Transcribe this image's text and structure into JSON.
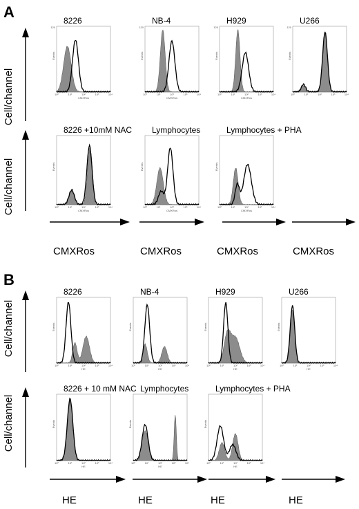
{
  "panels": [
    {
      "letter": "A",
      "y_axis_label": "Cell/channel",
      "x_unit": "CMXRos",
      "rows": [
        [
          {
            "title": "8226",
            "ylab": "Events",
            "xlab": "CMXRos",
            "ymax_label": "120",
            "filled": [
              {
                "c": 0.2,
                "w": 0.07,
                "h": 0.72
              }
            ],
            "open": [
              {
                "c": 0.35,
                "w": 0.055,
                "h": 0.82
              }
            ]
          },
          {
            "title": "NB-4",
            "ylab": "Events",
            "xlab": "CMXRos",
            "ymax_label": "120",
            "filled": [
              {
                "c": 0.33,
                "w": 0.045,
                "h": 0.98
              }
            ],
            "open": [
              {
                "c": 0.5,
                "w": 0.055,
                "h": 0.8
              }
            ]
          },
          {
            "title": "H929",
            "ylab": "Events",
            "xlab": "CMXRos",
            "ymax_label": "120",
            "filled": [
              {
                "c": 0.34,
                "w": 0.04,
                "h": 0.98
              }
            ],
            "open": [
              {
                "c": 0.48,
                "w": 0.06,
                "h": 0.62
              }
            ]
          },
          {
            "title": "U266",
            "ylab": "Events",
            "xlab": "",
            "ymax_label": "120",
            "filled": [
              {
                "c": 0.2,
                "w": 0.04,
                "h": 0.1
              },
              {
                "c": 0.6,
                "w": 0.045,
                "h": 0.96
              }
            ],
            "open": [
              {
                "c": 0.2,
                "w": 0.04,
                "h": 0.12
              },
              {
                "c": 0.6,
                "w": 0.045,
                "h": 0.94
              }
            ]
          }
        ],
        [
          {
            "title": "8226 +10mM NAC",
            "ylab": "Events",
            "xlab": "CMXRos",
            "ymax_label": "",
            "filled": [
              {
                "c": 0.28,
                "w": 0.05,
                "h": 0.2
              },
              {
                "c": 0.62,
                "w": 0.045,
                "h": 0.85
              }
            ],
            "open": [
              {
                "c": 0.28,
                "w": 0.05,
                "h": 0.22
              },
              {
                "c": 0.61,
                "w": 0.048,
                "h": 0.88
              }
            ]
          },
          {
            "title": "Lymphocytes",
            "ylab": "Events",
            "xlab": "CMXRos",
            "ymax_label": "",
            "filled": [
              {
                "c": 0.28,
                "w": 0.06,
                "h": 0.55
              }
            ],
            "open": [
              {
                "c": 0.47,
                "w": 0.05,
                "h": 0.85
              },
              {
                "c": 0.3,
                "w": 0.05,
                "h": 0.2
              }
            ]
          },
          {
            "title": "Lymphocytes + PHA",
            "ylab": "Events",
            "xlab": "CMXRos",
            "ymax_label": "",
            "filled": [
              {
                "c": 0.3,
                "w": 0.045,
                "h": 0.55
              }
            ],
            "open": [
              {
                "c": 0.52,
                "w": 0.07,
                "h": 0.6
              },
              {
                "c": 0.33,
                "w": 0.04,
                "h": 0.3
              }
            ]
          }
        ]
      ]
    },
    {
      "letter": "B",
      "y_axis_label": "Cell/channel",
      "x_unit": "HE",
      "rows": [
        [
          {
            "title": "8226",
            "ylab": "Events",
            "xlab": "HE",
            "ymax_label": "",
            "filled": [
              {
                "c": 0.34,
                "w": 0.04,
                "h": 0.32
              },
              {
                "c": 0.55,
                "w": 0.06,
                "h": 0.42
              }
            ],
            "open": [
              {
                "c": 0.22,
                "w": 0.045,
                "h": 0.96
              }
            ]
          },
          {
            "title": "NB-4",
            "ylab": "Events",
            "xlab": "HE",
            "ymax_label": "",
            "filled": [
              {
                "c": 0.22,
                "w": 0.04,
                "h": 0.3
              },
              {
                "c": 0.58,
                "w": 0.05,
                "h": 0.26
              }
            ],
            "open": [
              {
                "c": 0.26,
                "w": 0.045,
                "h": 0.92
              }
            ]
          },
          {
            "title": "H929",
            "ylab": "Events",
            "xlab": "HE",
            "ymax_label": "",
            "filled": [
              {
                "c": 0.35,
                "w": 0.06,
                "h": 0.45
              },
              {
                "c": 0.5,
                "w": 0.08,
                "h": 0.4
              }
            ],
            "open": [
              {
                "c": 0.32,
                "w": 0.04,
                "h": 0.95
              }
            ]
          },
          {
            "title": "U266",
            "ylab": "Events",
            "xlab": "HE",
            "ymax_label": "",
            "filled": [
              {
                "c": 0.2,
                "w": 0.04,
                "h": 0.84
              }
            ],
            "open": [
              {
                "c": 0.2,
                "w": 0.042,
                "h": 0.9
              }
            ]
          }
        ],
        [
          {
            "title": "8226 + 10 mM NAC",
            "ylab": "Events",
            "xlab": "HE",
            "ymax_label": "",
            "filled": [
              {
                "c": 0.25,
                "w": 0.05,
                "h": 0.96
              }
            ],
            "open": [
              {
                "c": 0.25,
                "w": 0.052,
                "h": 0.96
              }
            ]
          },
          {
            "title": "Lymphocytes",
            "ylab": "Events",
            "xlab": "HE",
            "ymax_label": "",
            "filled": [
              {
                "c": 0.22,
                "w": 0.06,
                "h": 0.46
              },
              {
                "c": 0.78,
                "w": 0.02,
                "h": 0.72
              }
            ],
            "open": [
              {
                "c": 0.22,
                "w": 0.055,
                "h": 0.56
              }
            ]
          },
          {
            "title": "Lymphocytes + PHA",
            "ylab": "Events",
            "xlab": "HE",
            "ymax_label": "",
            "filled": [
              {
                "c": 0.25,
                "w": 0.05,
                "h": 0.28
              },
              {
                "c": 0.5,
                "w": 0.05,
                "h": 0.42
              }
            ],
            "open": [
              {
                "c": 0.22,
                "w": 0.06,
                "h": 0.54
              },
              {
                "c": 0.45,
                "w": 0.06,
                "h": 0.25
              }
            ]
          }
        ]
      ]
    }
  ],
  "tick_labels": [
    "10⁰",
    "10¹",
    "10²",
    "10³",
    "10⁴"
  ],
  "colors": {
    "fill": "#8c8c8c",
    "outline": "#000000"
  }
}
